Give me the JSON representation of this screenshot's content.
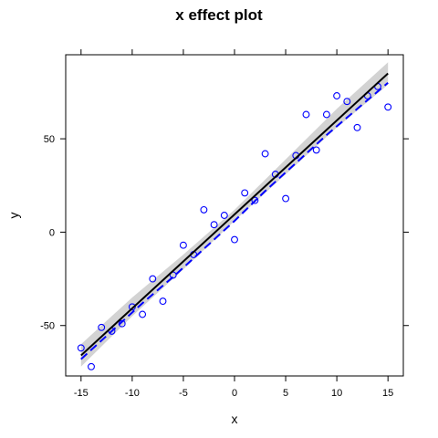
{
  "chart_data": {
    "type": "scatter",
    "title": "x effect plot",
    "xlabel": "x",
    "ylabel": "y",
    "xlim": [
      -16.5,
      16.5
    ],
    "ylim": [
      -77,
      95
    ],
    "x_ticks": [
      -15,
      -10,
      -5,
      0,
      5,
      10,
      15
    ],
    "y_ticks": [
      -50,
      0,
      50
    ],
    "grid": false,
    "colors": {
      "points": "#0000ff",
      "fit": "#000000",
      "smooth": "#0000ff",
      "band": "#d3d3d3"
    },
    "points": [
      {
        "x": -15,
        "y": -62
      },
      {
        "x": -14,
        "y": -72
      },
      {
        "x": -13,
        "y": -51
      },
      {
        "x": -12,
        "y": -53
      },
      {
        "x": -11,
        "y": -49
      },
      {
        "x": -10,
        "y": -40
      },
      {
        "x": -9,
        "y": -44
      },
      {
        "x": -8,
        "y": -25
      },
      {
        "x": -7,
        "y": -37
      },
      {
        "x": -6,
        "y": -23
      },
      {
        "x": -5,
        "y": -7
      },
      {
        "x": -4,
        "y": -12
      },
      {
        "x": -3,
        "y": 12
      },
      {
        "x": -2,
        "y": 4
      },
      {
        "x": -1,
        "y": 9
      },
      {
        "x": 0,
        "y": -4
      },
      {
        "x": 1,
        "y": 21
      },
      {
        "x": 2,
        "y": 17
      },
      {
        "x": 3,
        "y": 42
      },
      {
        "x": 4,
        "y": 31
      },
      {
        "x": 5,
        "y": 18
      },
      {
        "x": 6,
        "y": 41
      },
      {
        "x": 7,
        "y": 63
      },
      {
        "x": 8,
        "y": 44
      },
      {
        "x": 9,
        "y": 63
      },
      {
        "x": 10,
        "y": 73
      },
      {
        "x": 11,
        "y": 70
      },
      {
        "x": 12,
        "y": 56
      },
      {
        "x": 13,
        "y": 73
      },
      {
        "x": 14,
        "y": 78
      },
      {
        "x": 15,
        "y": 67
      }
    ],
    "fit_line": {
      "x": [
        -15,
        15
      ],
      "y": [
        -66,
        85
      ]
    },
    "confidence_band": {
      "x": [
        -15,
        -10,
        -5,
        0,
        5,
        10,
        15
      ],
      "lower": [
        -72,
        -45,
        -20,
        6,
        31,
        56,
        79
      ],
      "upper": [
        -60,
        -35,
        -12,
        12,
        39,
        66,
        91
      ]
    },
    "smooth_line": {
      "x": [
        -15,
        -12,
        -9,
        -6,
        -3,
        0,
        3,
        6,
        9,
        12,
        15
      ],
      "y": [
        -68,
        -53,
        -38,
        -24,
        -9,
        6,
        22,
        37,
        52,
        66,
        80
      ]
    }
  }
}
